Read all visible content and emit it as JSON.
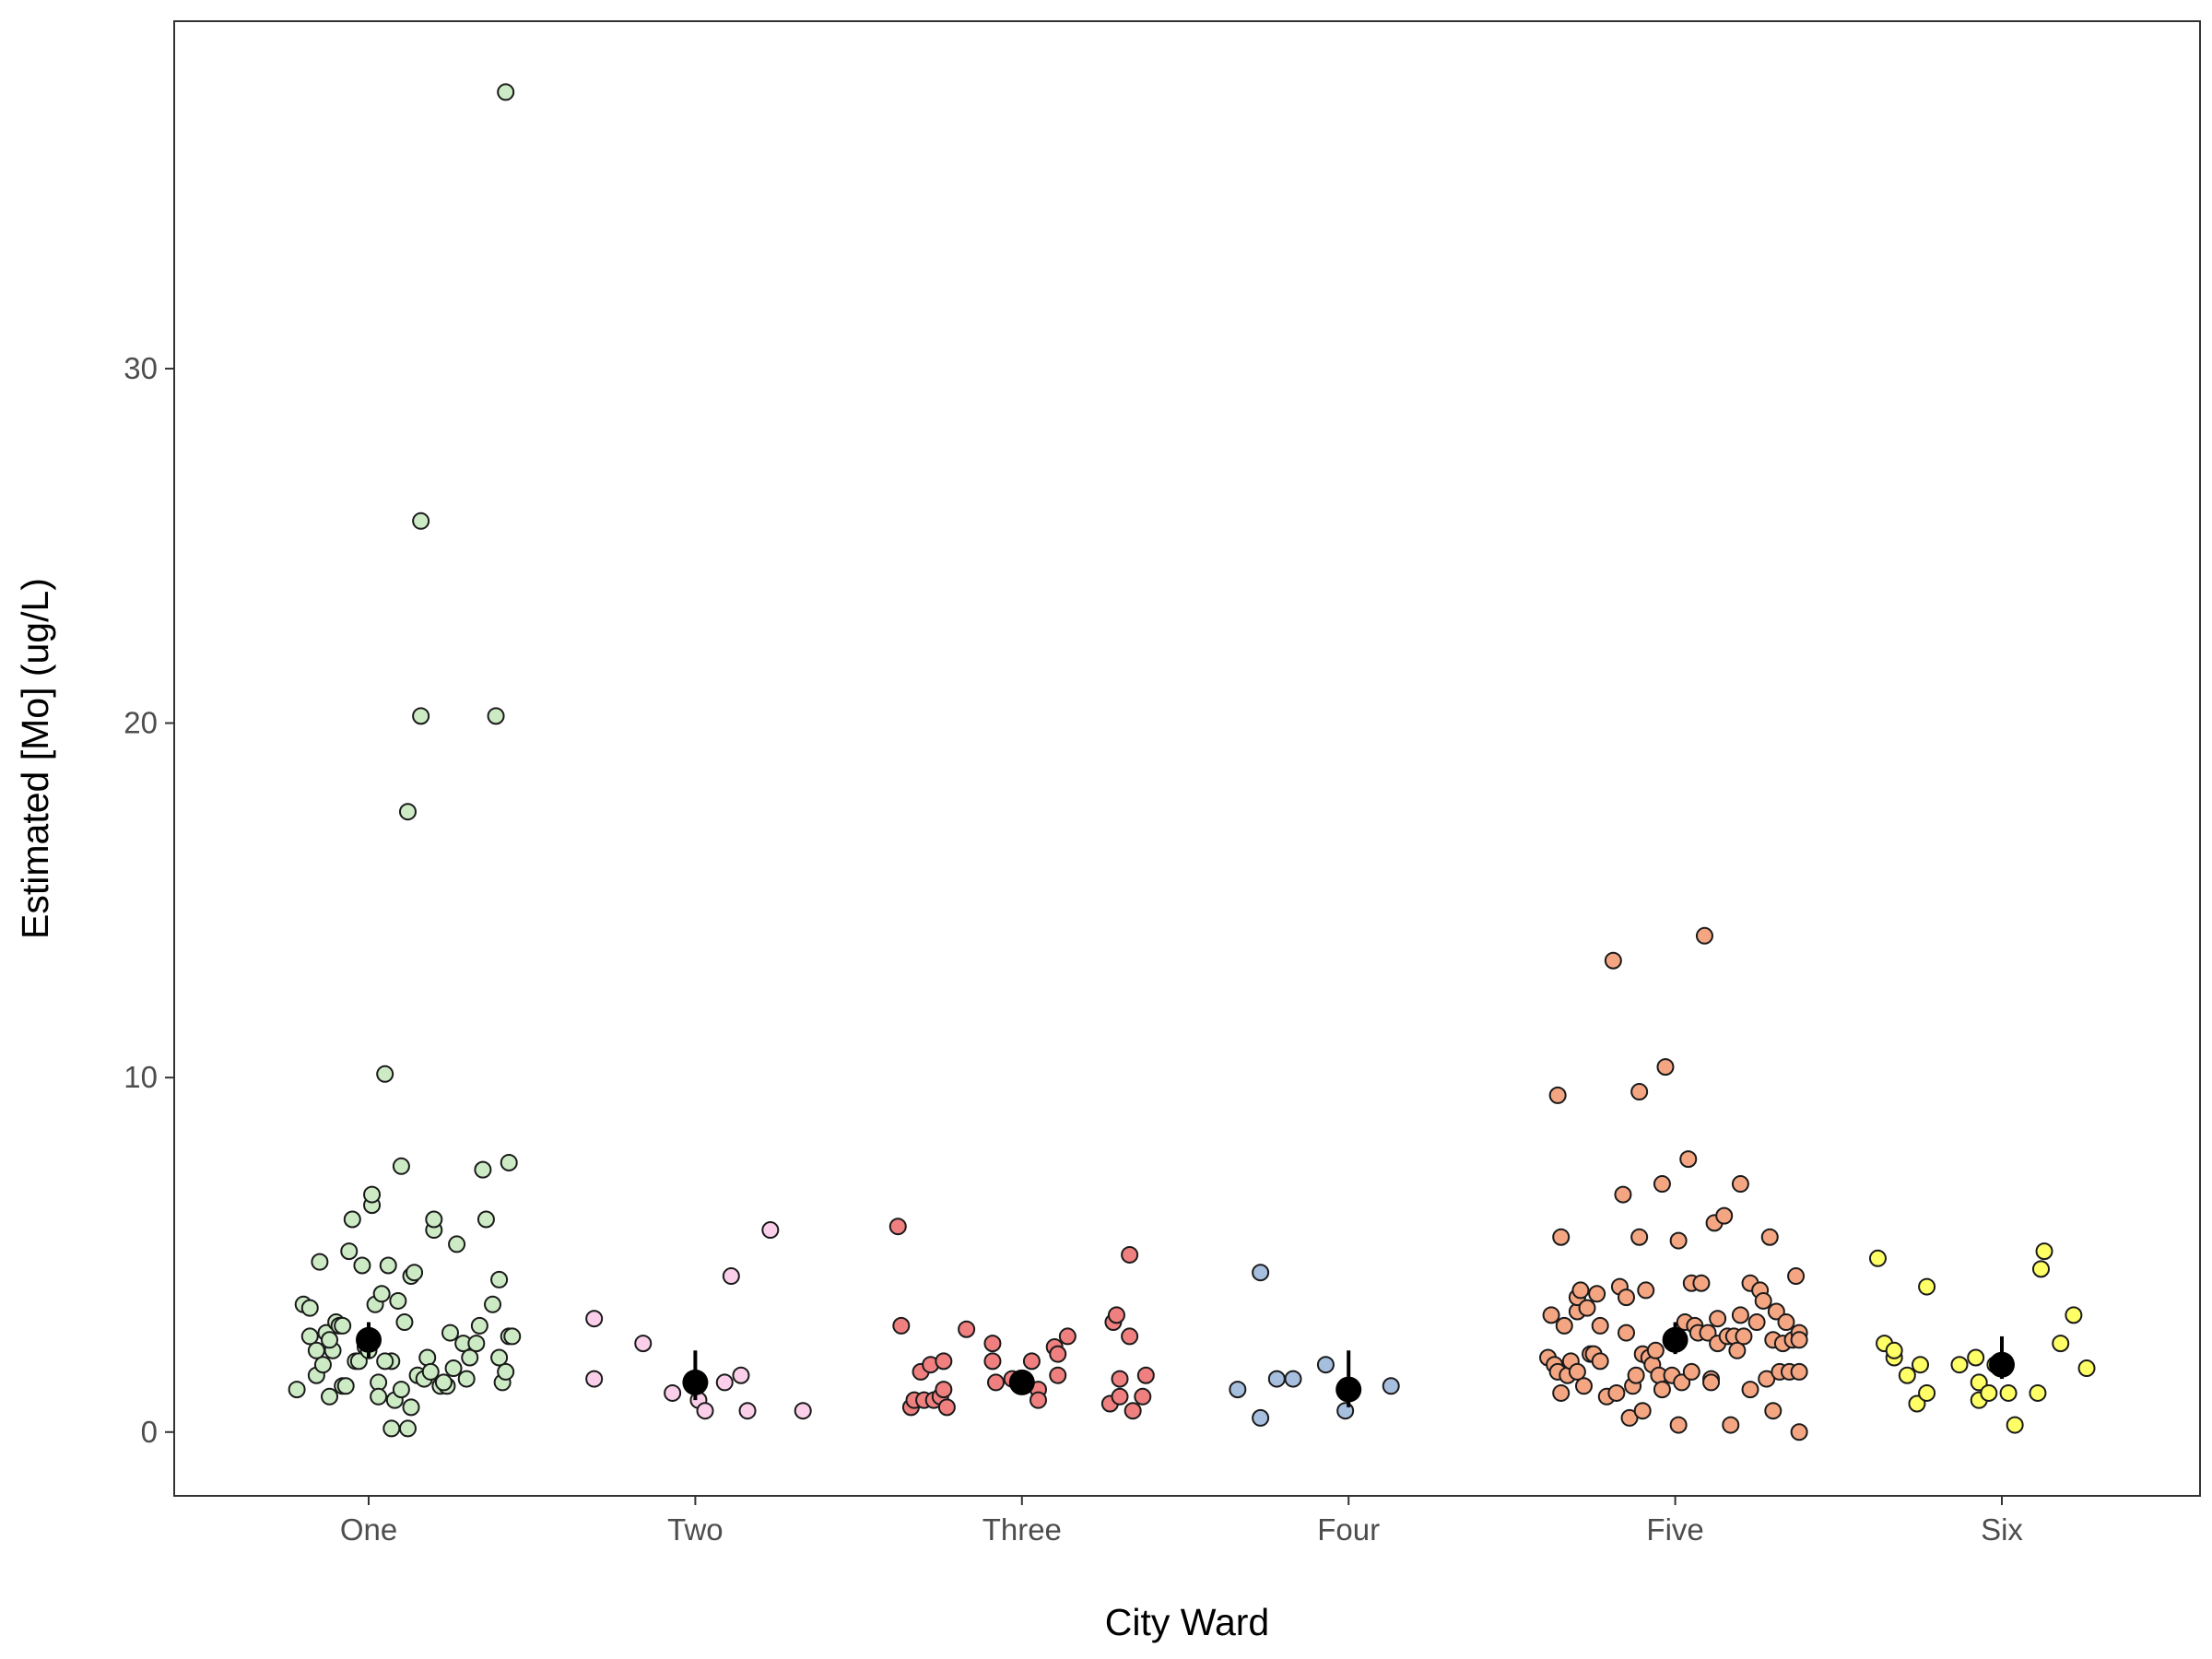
{
  "chart_data": {
    "type": "scatter",
    "xlabel": "City Ward",
    "ylabel": "Estimated [Mo] (ug/L)",
    "ylim": [
      -1.8,
      39.8
    ],
    "yticks": [
      0,
      10,
      20,
      30
    ],
    "grid": false,
    "legend": "none",
    "categories": [
      "One",
      "Two",
      "Three",
      "Four",
      "Five",
      "Six"
    ],
    "series": [
      {
        "category": "One",
        "color": "#ccebc5",
        "mean": 2.6,
        "ci": [
          2.1,
          3.1
        ],
        "points": [
          [
            -0.22,
            1.2
          ],
          [
            -0.2,
            3.6
          ],
          [
            -0.18,
            2.7
          ],
          [
            -0.18,
            3.5
          ],
          [
            -0.16,
            1.6
          ],
          [
            -0.16,
            2.3
          ],
          [
            -0.15,
            4.8
          ],
          [
            -0.14,
            1.9
          ],
          [
            -0.13,
            2.8
          ],
          [
            -0.12,
            1.0
          ],
          [
            -0.11,
            2.3
          ],
          [
            -0.1,
            3.1
          ],
          [
            -0.09,
            3.0
          ],
          [
            -0.08,
            1.3
          ],
          [
            -0.07,
            1.3
          ],
          [
            -0.06,
            5.1
          ],
          [
            -0.05,
            6.0
          ],
          [
            -0.04,
            2.0
          ],
          [
            -0.03,
            2.0
          ],
          [
            -0.02,
            4.7
          ],
          [
            -0.01,
            2.4
          ],
          [
            0.0,
            2.3
          ],
          [
            0.01,
            6.4
          ],
          [
            0.01,
            6.7
          ],
          [
            0.02,
            3.6
          ],
          [
            0.03,
            1.4
          ],
          [
            0.03,
            1.0
          ],
          [
            0.04,
            3.9
          ],
          [
            0.05,
            10.1
          ],
          [
            0.06,
            4.7
          ],
          [
            0.07,
            0.1
          ],
          [
            0.07,
            2.0
          ],
          [
            0.08,
            0.9
          ],
          [
            0.09,
            3.7
          ],
          [
            0.1,
            1.2
          ],
          [
            0.1,
            7.5
          ],
          [
            0.11,
            3.1
          ],
          [
            0.12,
            17.5
          ],
          [
            0.12,
            0.1
          ],
          [
            0.13,
            4.4
          ],
          [
            0.13,
            0.7
          ],
          [
            0.14,
            4.5
          ],
          [
            0.15,
            1.6
          ],
          [
            0.16,
            25.7
          ],
          [
            0.16,
            20.2
          ],
          [
            0.17,
            1.5
          ],
          [
            0.18,
            2.1
          ],
          [
            0.19,
            1.7
          ],
          [
            0.2,
            5.7
          ],
          [
            0.2,
            6.0
          ],
          [
            0.22,
            1.3
          ],
          [
            0.24,
            1.3
          ],
          [
            0.25,
            2.8
          ],
          [
            0.26,
            1.8
          ],
          [
            0.27,
            5.3
          ],
          [
            0.29,
            2.5
          ],
          [
            0.31,
            2.1
          ],
          [
            0.33,
            2.5
          ],
          [
            0.34,
            3.0
          ],
          [
            0.35,
            7.4
          ],
          [
            0.36,
            6.0
          ],
          [
            0.38,
            3.6
          ],
          [
            0.39,
            20.2
          ],
          [
            0.4,
            2.1
          ],
          [
            0.4,
            4.3
          ],
          [
            0.41,
            1.4
          ],
          [
            0.42,
            1.7
          ],
          [
            0.42,
            37.8
          ],
          [
            0.43,
            7.6
          ],
          [
            0.43,
            2.7
          ],
          [
            0.44,
            2.7
          ],
          [
            -0.08,
            3.0
          ],
          [
            0.05,
            2.0
          ],
          [
            0.23,
            1.4
          ],
          [
            0.3,
            1.5
          ],
          [
            -0.12,
            2.6
          ]
        ]
      },
      {
        "category": "Two",
        "color": "#fbcfe9",
        "mean": 1.4,
        "ci": [
          0.9,
          2.3
        ],
        "points": [
          [
            -0.31,
            3.2
          ],
          [
            -0.31,
            1.5
          ],
          [
            -0.16,
            2.5
          ],
          [
            -0.07,
            1.1
          ],
          [
            0.01,
            0.9
          ],
          [
            0.03,
            0.6
          ],
          [
            0.09,
            1.4
          ],
          [
            0.11,
            4.4
          ],
          [
            0.14,
            1.6
          ],
          [
            0.16,
            0.6
          ],
          [
            0.23,
            5.7
          ],
          [
            0.33,
            0.6
          ]
        ]
      },
      {
        "category": "Three",
        "color": "#f08080",
        "mean": 1.4,
        "ci": [
          1.2,
          1.7
        ],
        "points": [
          [
            -0.38,
            5.8
          ],
          [
            -0.37,
            3.0
          ],
          [
            -0.34,
            0.7
          ],
          [
            -0.33,
            0.9
          ],
          [
            -0.31,
            1.7
          ],
          [
            -0.3,
            0.9
          ],
          [
            -0.28,
            1.9
          ],
          [
            -0.27,
            0.9
          ],
          [
            -0.25,
            1.0
          ],
          [
            -0.24,
            2.0
          ],
          [
            -0.24,
            1.2
          ],
          [
            -0.23,
            0.7
          ],
          [
            -0.17,
            2.9
          ],
          [
            -0.09,
            2.5
          ],
          [
            -0.09,
            2.0
          ],
          [
            -0.08,
            1.4
          ],
          [
            -0.03,
            1.5
          ],
          [
            0.03,
            2.0
          ],
          [
            0.05,
            1.2
          ],
          [
            0.05,
            0.9
          ],
          [
            0.1,
            2.4
          ],
          [
            0.11,
            1.6
          ],
          [
            0.11,
            2.2
          ],
          [
            0.14,
            2.7
          ],
          [
            0.27,
            0.8
          ],
          [
            0.28,
            3.1
          ],
          [
            0.29,
            3.3
          ],
          [
            0.3,
            1.0
          ],
          [
            0.3,
            1.5
          ],
          [
            0.33,
            5.0
          ],
          [
            0.33,
            2.7
          ],
          [
            0.34,
            0.6
          ],
          [
            0.37,
            1.0
          ],
          [
            0.38,
            1.6
          ]
        ]
      },
      {
        "category": "Four",
        "color": "#a7bfdf",
        "mean": 1.2,
        "ci": [
          0.7,
          2.3
        ],
        "points": [
          [
            -0.34,
            1.2
          ],
          [
            -0.27,
            4.5
          ],
          [
            -0.27,
            0.4
          ],
          [
            -0.22,
            1.5
          ],
          [
            -0.17,
            1.5
          ],
          [
            -0.07,
            1.9
          ],
          [
            -0.01,
            0.6
          ],
          [
            0.13,
            1.3
          ]
        ]
      },
      {
        "category": "Five",
        "color": "#f4a582",
        "mean": 2.6,
        "ci": [
          2.2,
          3.1
        ],
        "points": [
          [
            -0.39,
            2.1
          ],
          [
            -0.38,
            3.3
          ],
          [
            -0.37,
            1.9
          ],
          [
            -0.36,
            1.7
          ],
          [
            -0.36,
            9.5
          ],
          [
            -0.35,
            5.5
          ],
          [
            -0.35,
            1.1
          ],
          [
            -0.34,
            3.0
          ],
          [
            -0.33,
            1.6
          ],
          [
            -0.32,
            2.0
          ],
          [
            -0.3,
            3.4
          ],
          [
            -0.3,
            3.8
          ],
          [
            -0.3,
            1.7
          ],
          [
            -0.29,
            4.0
          ],
          [
            -0.28,
            1.3
          ],
          [
            -0.27,
            3.5
          ],
          [
            -0.26,
            2.2
          ],
          [
            -0.25,
            2.2
          ],
          [
            -0.24,
            3.9
          ],
          [
            -0.23,
            2.0
          ],
          [
            -0.23,
            3.0
          ],
          [
            -0.21,
            1.0
          ],
          [
            -0.19,
            13.3
          ],
          [
            -0.18,
            1.1
          ],
          [
            -0.17,
            4.1
          ],
          [
            -0.16,
            6.7
          ],
          [
            -0.15,
            2.8
          ],
          [
            -0.15,
            3.8
          ],
          [
            -0.14,
            0.4
          ],
          [
            -0.13,
            1.3
          ],
          [
            -0.12,
            1.6
          ],
          [
            -0.11,
            5.5
          ],
          [
            -0.11,
            9.6
          ],
          [
            -0.1,
            0.6
          ],
          [
            -0.1,
            2.2
          ],
          [
            -0.09,
            4.0
          ],
          [
            -0.08,
            2.1
          ],
          [
            -0.07,
            1.9
          ],
          [
            -0.06,
            2.3
          ],
          [
            -0.05,
            1.6
          ],
          [
            -0.04,
            7.0
          ],
          [
            -0.04,
            1.2
          ],
          [
            -0.03,
            10.3
          ],
          [
            -0.01,
            1.6
          ],
          [
            0.01,
            5.4
          ],
          [
            0.01,
            0.2
          ],
          [
            0.02,
            1.4
          ],
          [
            0.03,
            3.1
          ],
          [
            0.04,
            7.7
          ],
          [
            0.05,
            4.2
          ],
          [
            0.05,
            1.7
          ],
          [
            0.06,
            3.0
          ],
          [
            0.07,
            2.8
          ],
          [
            0.08,
            4.2
          ],
          [
            0.09,
            14.0
          ],
          [
            0.1,
            2.8
          ],
          [
            0.11,
            1.5
          ],
          [
            0.11,
            1.4
          ],
          [
            0.12,
            5.9
          ],
          [
            0.13,
            3.2
          ],
          [
            0.13,
            2.5
          ],
          [
            0.15,
            6.1
          ],
          [
            0.16,
            2.7
          ],
          [
            0.17,
            0.2
          ],
          [
            0.18,
            2.7
          ],
          [
            0.19,
            2.3
          ],
          [
            0.2,
            3.3
          ],
          [
            0.2,
            7.0
          ],
          [
            0.21,
            2.7
          ],
          [
            0.23,
            4.2
          ],
          [
            0.23,
            1.2
          ],
          [
            0.25,
            3.1
          ],
          [
            0.26,
            4.0
          ],
          [
            0.27,
            3.7
          ],
          [
            0.28,
            1.5
          ],
          [
            0.29,
            5.5
          ],
          [
            0.3,
            2.6
          ],
          [
            0.3,
            0.6
          ],
          [
            0.31,
            3.4
          ],
          [
            0.32,
            1.7
          ],
          [
            0.33,
            2.5
          ],
          [
            0.34,
            3.1
          ],
          [
            0.35,
            1.7
          ],
          [
            0.36,
            2.6
          ],
          [
            0.37,
            4.4
          ],
          [
            0.38,
            2.8
          ],
          [
            0.38,
            2.6
          ],
          [
            0.38,
            1.7
          ],
          [
            0.38,
            0.0
          ]
        ]
      },
      {
        "category": "Six",
        "color": "#ffff66",
        "mean": 1.9,
        "ci": [
          1.5,
          2.7
        ],
        "points": [
          [
            -0.38,
            4.9
          ],
          [
            -0.36,
            2.5
          ],
          [
            -0.33,
            2.1
          ],
          [
            -0.33,
            2.3
          ],
          [
            -0.29,
            1.6
          ],
          [
            -0.26,
            0.8
          ],
          [
            -0.25,
            1.9
          ],
          [
            -0.23,
            1.1
          ],
          [
            -0.23,
            4.1
          ],
          [
            -0.13,
            1.9
          ],
          [
            -0.08,
            2.1
          ],
          [
            -0.07,
            0.9
          ],
          [
            -0.07,
            1.4
          ],
          [
            -0.04,
            1.1
          ],
          [
            0.02,
            1.1
          ],
          [
            0.04,
            0.2
          ],
          [
            0.11,
            1.1
          ],
          [
            0.12,
            4.6
          ],
          [
            0.13,
            5.1
          ],
          [
            0.18,
            2.5
          ],
          [
            0.22,
            3.3
          ],
          [
            0.26,
            1.8
          ],
          [
            -0.02,
            1.9
          ]
        ]
      }
    ]
  }
}
